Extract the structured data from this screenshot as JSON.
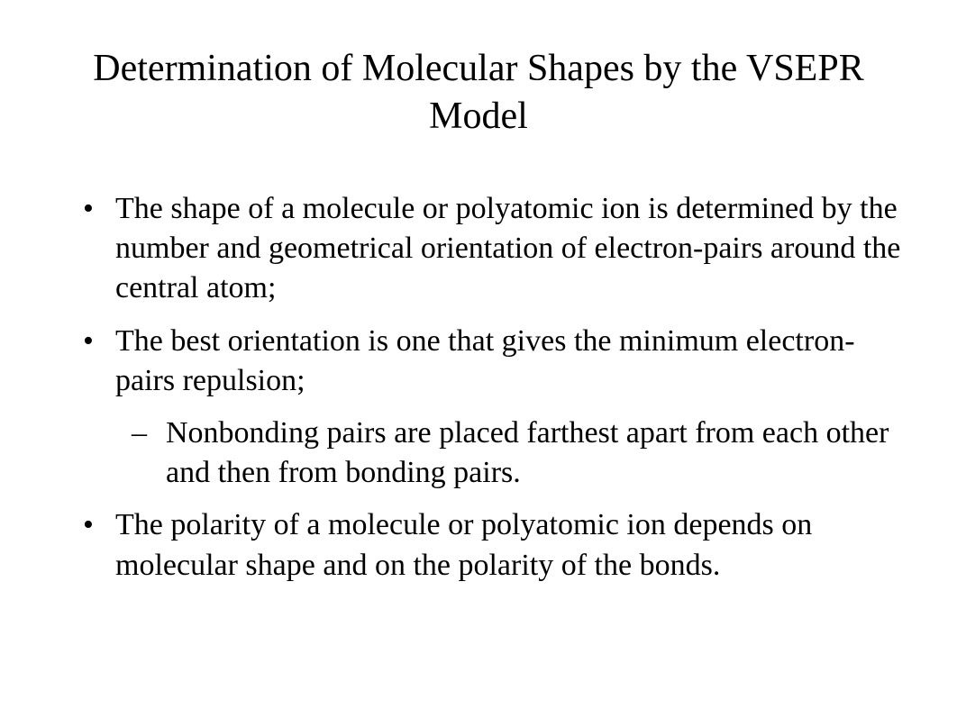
{
  "slide": {
    "title": "Determination of Molecular Shapes by the VSEPR Model",
    "bullets": [
      {
        "text": "The shape of a molecule or polyatomic ion is determined by the number and geometrical orientation of electron-pairs around the central atom;"
      },
      {
        "text": "The best orientation is one that gives the minimum electron-pairs repulsion;",
        "sub": [
          "Nonbonding pairs are placed farthest apart from each other and then from bonding pairs."
        ]
      },
      {
        "text": "The polarity of a molecule or polyatomic ion depends on molecular shape and on the polarity of the bonds."
      }
    ]
  },
  "style": {
    "background_color": "#ffffff",
    "text_color": "#000000",
    "font_family": "Times New Roman",
    "title_fontsize": 42,
    "body_fontsize": 34,
    "title_weight": "normal",
    "body_weight": "normal",
    "level1_marker": "•",
    "level2_marker": "–"
  }
}
